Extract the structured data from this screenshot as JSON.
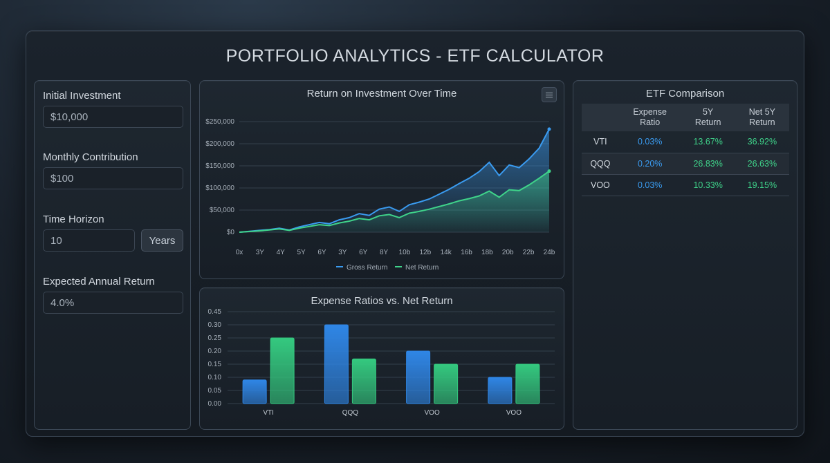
{
  "app": {
    "title": "PORTFOLIO ANALYTICS - ETF CALCULATOR"
  },
  "inputs": {
    "initial": {
      "label": "Initial Investment",
      "value": "$10,000"
    },
    "monthly": {
      "label": "Monthly Contribution",
      "value": "$100"
    },
    "horizon": {
      "label": "Time Horizon",
      "value": "10",
      "unit_button": "Years"
    },
    "expected": {
      "label": "Expected Annual Return",
      "value": "4.0%"
    }
  },
  "roi_chart": {
    "title": "Return on Investment Over Time",
    "settings_icon": "sliders-icon",
    "chart_data": {
      "type": "area",
      "y_ticks": [
        "$0",
        "$50,000",
        "$100,000",
        "$150,000",
        "$200,000",
        "$250,000"
      ],
      "ylim": [
        0,
        250000
      ],
      "x_ticks": [
        "0x",
        "3Y",
        "4Y",
        "5Y",
        "6Y",
        "3Y",
        "6Y",
        "8Y",
        "10b",
        "12b",
        "14k",
        "16b",
        "18b",
        "20b",
        "22b",
        "24b"
      ],
      "series": [
        {
          "name": "Gross Return",
          "color": "#3a9bf0",
          "values": [
            0,
            2000,
            4000,
            6000,
            9000,
            5000,
            12000,
            17000,
            22000,
            19000,
            28000,
            33000,
            42000,
            38000,
            52000,
            57000,
            47000,
            62000,
            68000,
            75000,
            86000,
            97000,
            110000,
            122000,
            137000,
            158000,
            128000,
            152000,
            146000,
            166000,
            190000,
            233000
          ]
        },
        {
          "name": "Net Return",
          "color": "#3fd38a",
          "values": [
            0,
            1500,
            3000,
            5000,
            7500,
            4000,
            9000,
            13000,
            17000,
            15000,
            21000,
            25000,
            31000,
            28000,
            37000,
            40000,
            33000,
            43000,
            47000,
            52000,
            58000,
            64000,
            71000,
            76000,
            82000,
            93000,
            79000,
            96000,
            94000,
            107000,
            122000,
            138000
          ]
        }
      ]
    }
  },
  "expense_chart": {
    "title": "Expense Ratios vs. Net Return",
    "chart_data": {
      "type": "bar",
      "categories": [
        "VTI",
        "QQQ",
        "VOO",
        "VOO"
      ],
      "y_ticks": [
        "0.00",
        "0.05",
        "0.10",
        "0.15",
        "0.20",
        "0.25",
        "0.30",
        "0.45"
      ],
      "series": [
        {
          "color": "#2f86e6",
          "values": [
            0.09,
            0.3,
            0.2,
            0.1
          ]
        },
        {
          "color": "#34c97f",
          "values": [
            0.25,
            0.17,
            0.15,
            0.15
          ]
        }
      ]
    }
  },
  "comparison": {
    "title": "ETF Comparison",
    "headers": [
      "",
      "Expense\nRatio",
      "5Y\nReturn",
      "Net 5Y\nReturn"
    ],
    "rows": [
      {
        "ticker": "VTI",
        "expense": "0.03%",
        "ret5": "13.67%",
        "net5": "36.92%"
      },
      {
        "ticker": "QQQ",
        "expense": "0.20%",
        "ret5": "26.83%",
        "net5": "26.63%"
      },
      {
        "ticker": "VOO",
        "expense": "0.03%",
        "ret5": "10.33%",
        "net5": "19.15%"
      }
    ]
  }
}
